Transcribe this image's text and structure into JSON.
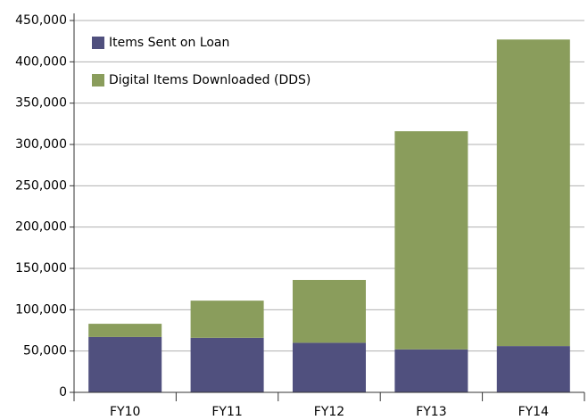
{
  "chart_data": {
    "type": "stacked_bar",
    "categories": [
      "FY10",
      "FY11",
      "FY12",
      "FY13",
      "FY14"
    ],
    "series": [
      {
        "name": "Items Sent on Loan",
        "color": "#50507e",
        "values": [
          67000,
          66000,
          60000,
          52000,
          56000
        ]
      },
      {
        "name": "Digital Items Downloaded (DDS)",
        "color": "#8a9d5c",
        "values": [
          16000,
          45000,
          76000,
          264000,
          371000
        ]
      }
    ],
    "ylim": [
      0,
      450000
    ],
    "yticks": [
      0,
      {
        "value": 50000,
        "label": "50,000"
      },
      {
        "value": 100000,
        "label": "100,000"
      },
      {
        "value": 150000,
        "label": "150,000"
      },
      {
        "value": 200000,
        "label": "200,000"
      },
      {
        "value": 250000,
        "label": "250,000"
      },
      {
        "value": 300000,
        "label": "300,000"
      },
      {
        "value": 350000,
        "label": "350,000"
      },
      {
        "value": 400000,
        "label": "400,000"
      },
      {
        "value": 450000,
        "label": "450,000"
      }
    ],
    "grid": true,
    "legend": "upper left"
  }
}
